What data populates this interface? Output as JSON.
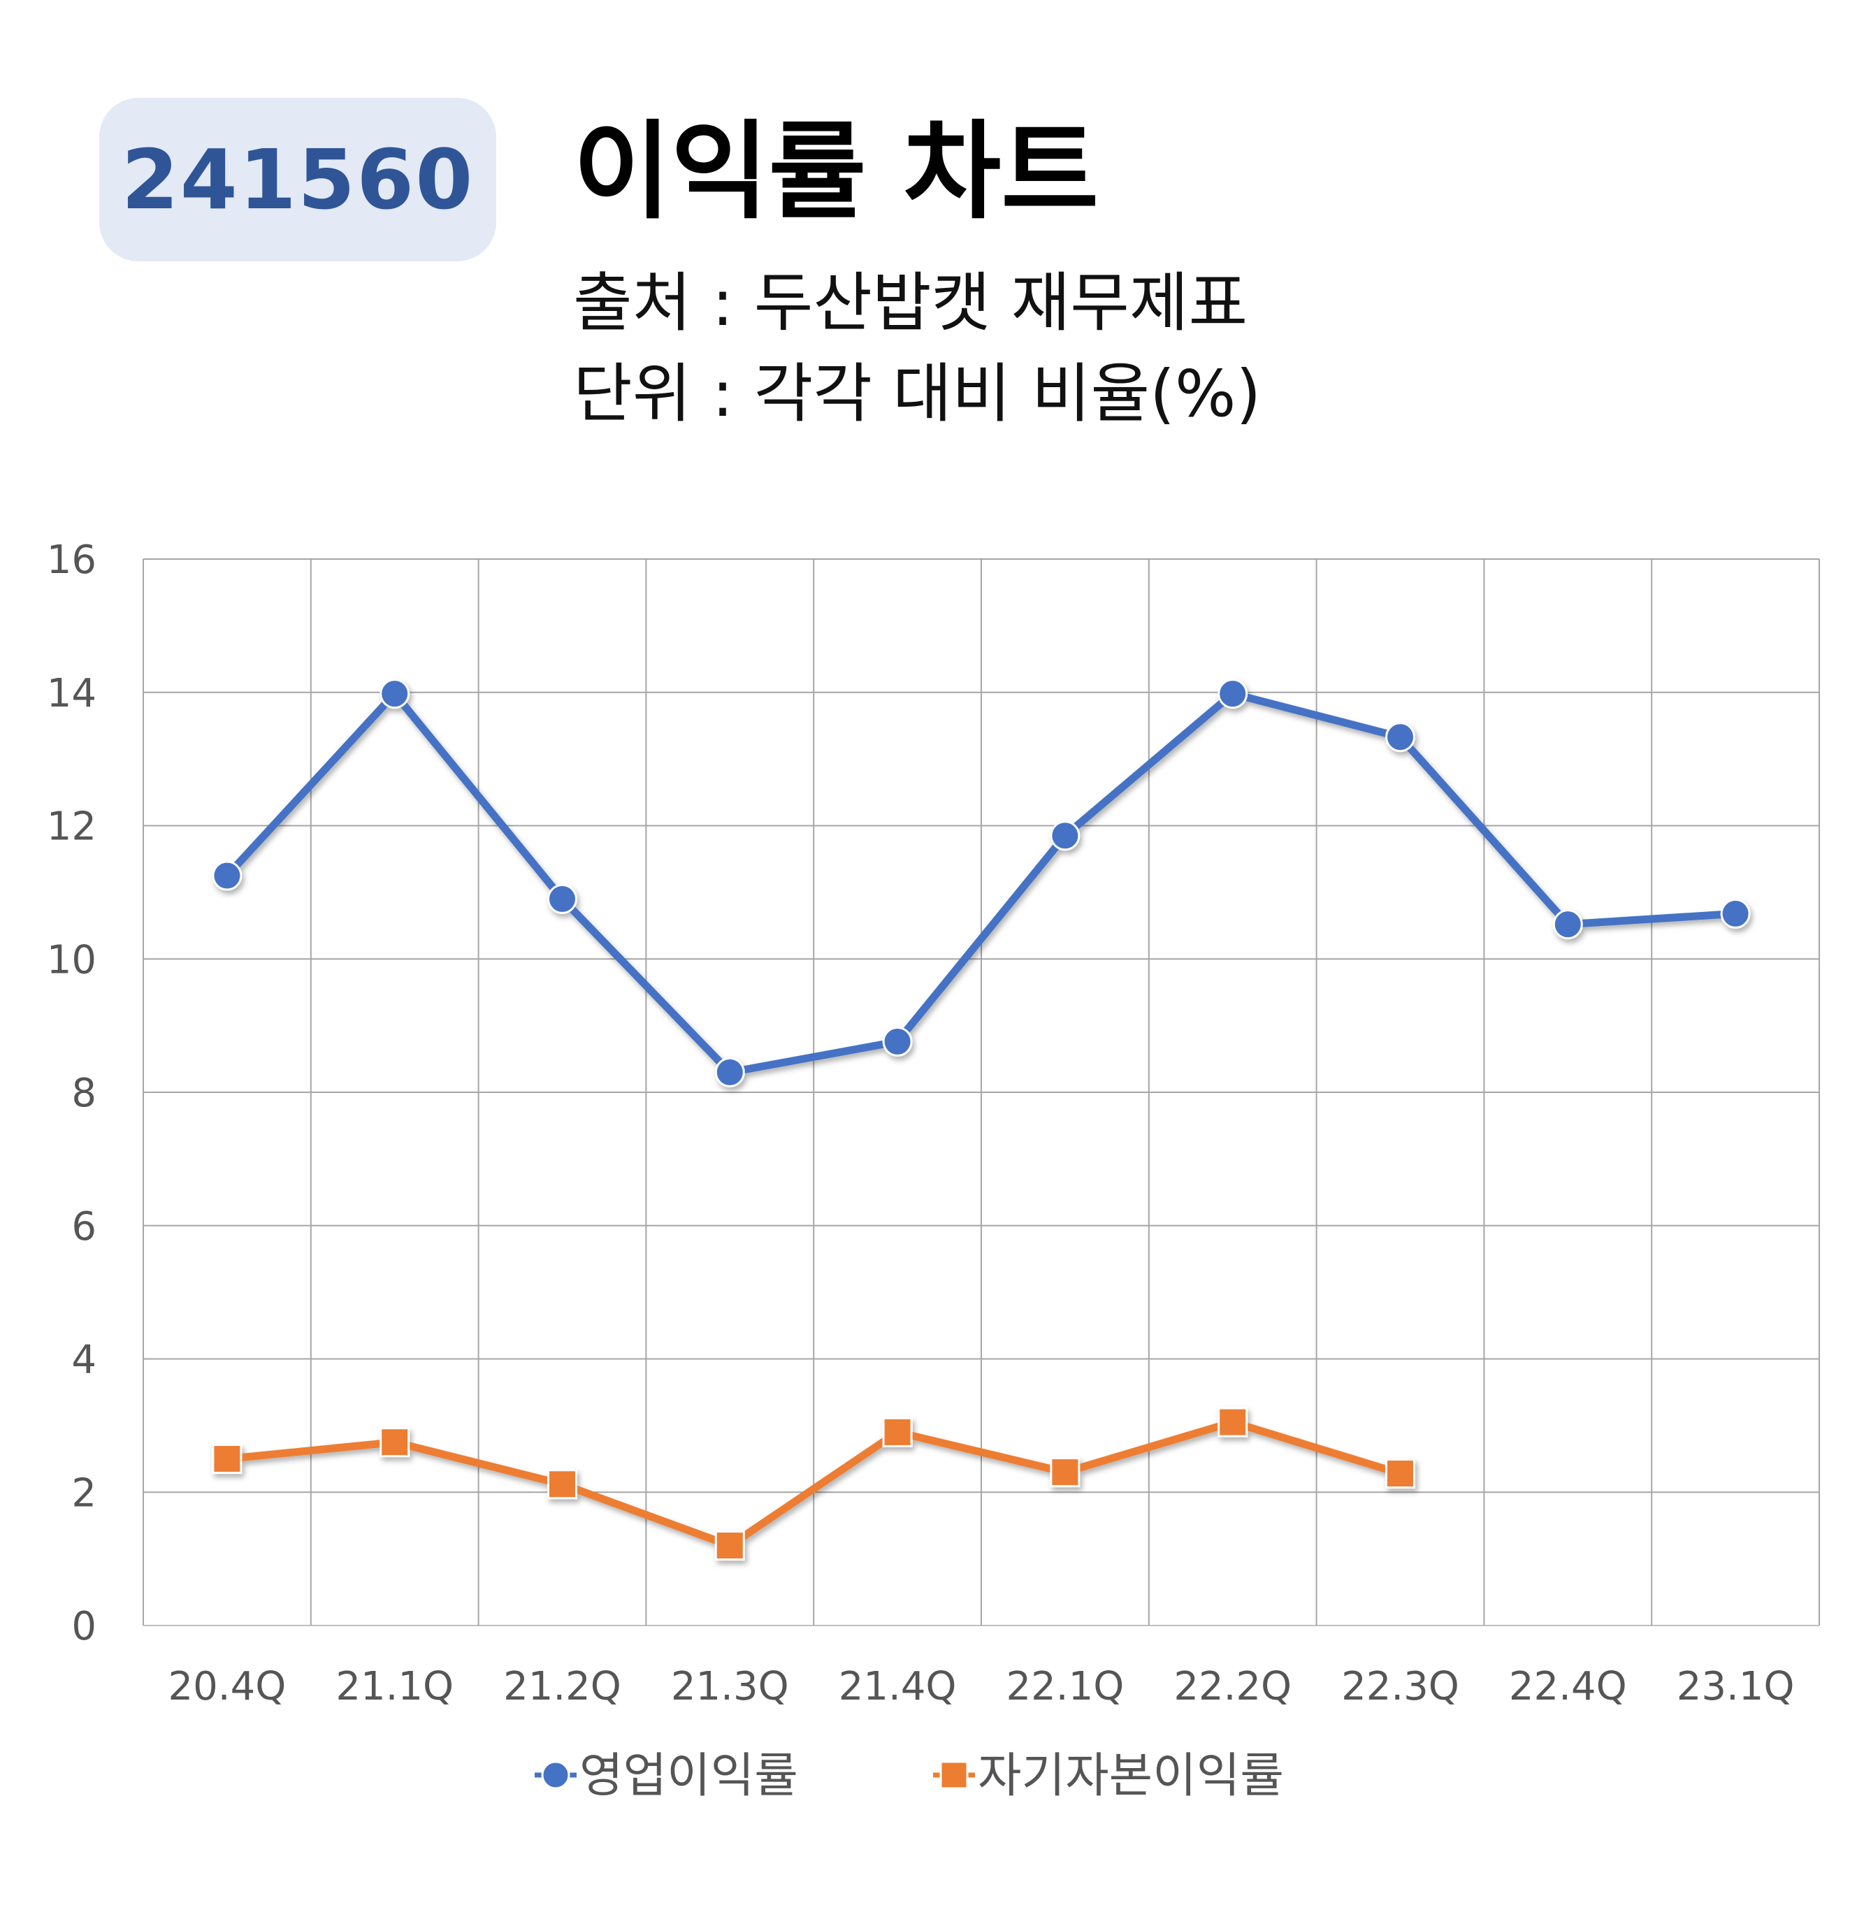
{
  "header": {
    "code": "241560",
    "title": "이익률 차트",
    "source": "출처 : 두산밥캣 재무제표",
    "unit": "단위 : 각각 대비 비율(%)"
  },
  "chart_data": {
    "type": "line",
    "categories": [
      "20.4Q",
      "21.1Q",
      "21.2Q",
      "21.3Q",
      "21.4Q",
      "22.1Q",
      "22.2Q",
      "22.3Q",
      "22.4Q",
      "23.1Q"
    ],
    "yticks": [
      "0",
      "2",
      "4",
      "6",
      "8",
      "10",
      "12",
      "14",
      "16"
    ],
    "ylim": [
      0,
      16
    ],
    "grid": true,
    "legend_position": "bottom",
    "series": [
      {
        "name": "영업이익률",
        "color": "#4472c4",
        "marker": "circle",
        "values": [
          11.25,
          13.98,
          10.9,
          8.3,
          8.76,
          11.85,
          13.98,
          13.33,
          10.52,
          10.68
        ]
      },
      {
        "name": "자기자본이익률",
        "color": "#ed7d31",
        "marker": "square",
        "values": [
          2.5,
          2.75,
          2.12,
          1.2,
          2.9,
          2.3,
          3.05,
          2.28,
          null,
          null
        ]
      }
    ]
  }
}
